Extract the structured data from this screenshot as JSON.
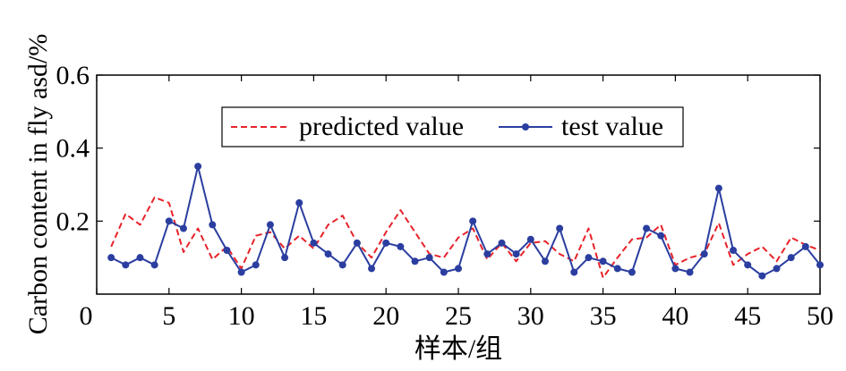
{
  "chart_data": {
    "type": "line",
    "xlabel": "样本/组",
    "ylabel": "Carbon content in fly asd/%",
    "xlim": [
      0,
      50
    ],
    "ylim": [
      0,
      0.6
    ],
    "xticks": [
      0,
      5,
      10,
      15,
      20,
      25,
      30,
      35,
      40,
      45,
      50
    ],
    "yticks": [
      0.2,
      0.4,
      0.6
    ],
    "xtick_labels": [
      "0",
      "5",
      "10",
      "15",
      "20",
      "25",
      "30",
      "35",
      "40",
      "45",
      "50"
    ],
    "ytick_labels": [
      "0.2",
      "0.4",
      "0.6"
    ],
    "grid": false,
    "legend_position": "upper-center",
    "x": [
      1,
      2,
      3,
      4,
      5,
      6,
      7,
      8,
      9,
      10,
      11,
      12,
      13,
      14,
      15,
      16,
      17,
      18,
      19,
      20,
      21,
      22,
      23,
      24,
      25,
      26,
      27,
      28,
      29,
      30,
      31,
      32,
      33,
      34,
      35,
      36,
      37,
      38,
      39,
      40,
      41,
      42,
      43,
      44,
      45,
      46,
      47,
      48,
      49,
      50
    ],
    "series": [
      {
        "name": "predicted value",
        "color": "#e8222a",
        "style": "dashed",
        "values": [
          0.13,
          0.22,
          0.19,
          0.265,
          0.25,
          0.115,
          0.18,
          0.095,
          0.13,
          0.07,
          0.16,
          0.17,
          0.125,
          0.16,
          0.125,
          0.19,
          0.215,
          0.14,
          0.1,
          0.17,
          0.23,
          0.17,
          0.11,
          0.1,
          0.155,
          0.18,
          0.095,
          0.14,
          0.09,
          0.14,
          0.145,
          0.11,
          0.09,
          0.18,
          0.045,
          0.1,
          0.15,
          0.155,
          0.19,
          0.08,
          0.1,
          0.11,
          0.195,
          0.08,
          0.11,
          0.13,
          0.09,
          0.155,
          0.135,
          0.12
        ]
      },
      {
        "name": "test value",
        "color": "#2b3ea0",
        "style": "solid",
        "marker": "circle",
        "values": [
          0.1,
          0.08,
          0.1,
          0.08,
          0.2,
          0.18,
          0.35,
          0.19,
          0.12,
          0.06,
          0.08,
          0.19,
          0.1,
          0.25,
          0.14,
          0.11,
          0.08,
          0.14,
          0.07,
          0.14,
          0.13,
          0.09,
          0.1,
          0.06,
          0.07,
          0.2,
          0.11,
          0.14,
          0.11,
          0.15,
          0.09,
          0.18,
          0.06,
          0.1,
          0.09,
          0.07,
          0.06,
          0.18,
          0.16,
          0.07,
          0.06,
          0.11,
          0.29,
          0.12,
          0.08,
          0.05,
          0.07,
          0.1,
          0.13,
          0.08
        ]
      }
    ]
  }
}
